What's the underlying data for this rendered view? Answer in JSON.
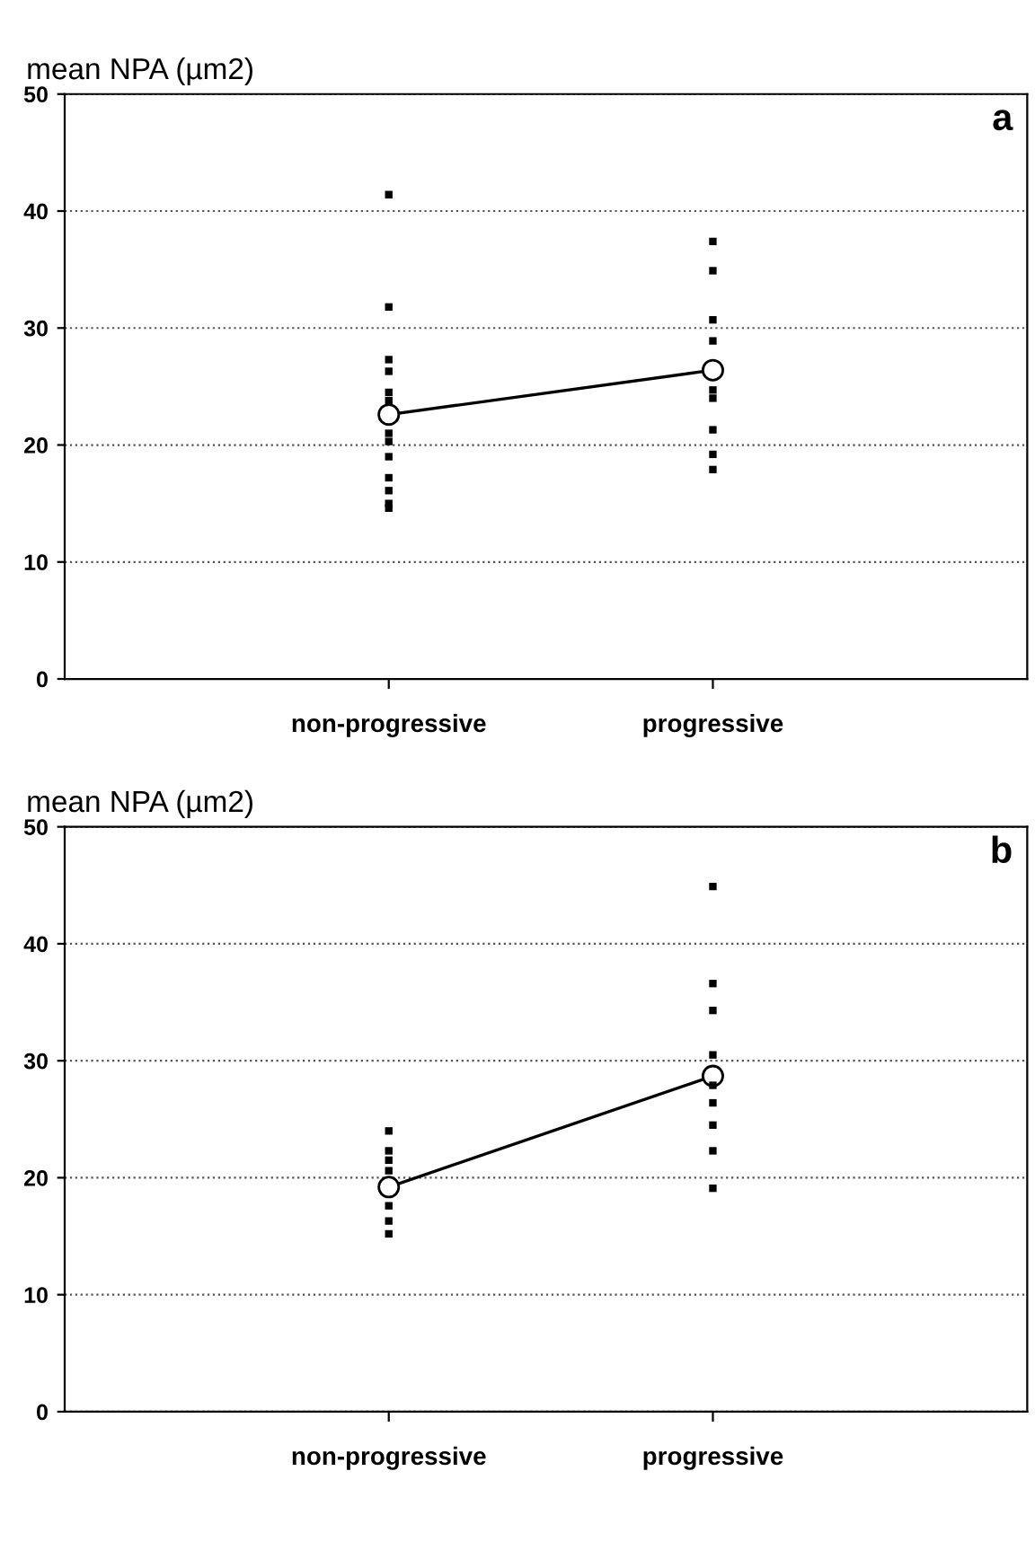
{
  "chart_data": [
    {
      "type": "scatter",
      "ylabel": "mean NPA (µm2)",
      "annotations": [
        "a"
      ],
      "categories": [
        "non-progressive",
        "progressive"
      ],
      "ylim": [
        0,
        50
      ],
      "yticks": [
        0,
        10,
        20,
        30,
        40,
        50
      ],
      "grid": "y",
      "series": [
        {
          "color": "#000000",
          "marker": "square",
          "x": [
            "non-progressive",
            "non-progressive",
            "non-progressive",
            "non-progressive",
            "non-progressive",
            "non-progressive",
            "non-progressive",
            "non-progressive",
            "non-progressive",
            "non-progressive",
            "non-progressive",
            "non-progressive",
            "non-progressive",
            "progressive",
            "progressive",
            "progressive",
            "progressive",
            "progressive",
            "progressive",
            "progressive",
            "progressive",
            "progressive"
          ],
          "values": [
            41.4,
            31.8,
            27.3,
            26.3,
            24.5,
            23.8,
            21,
            20.3,
            19,
            17.2,
            16.1,
            15,
            14.6,
            37.4,
            34.9,
            30.7,
            28.9,
            24.7,
            24,
            21.3,
            19.2,
            17.9
          ]
        },
        {
          "type": "line",
          "color": "#000000",
          "marker": "circle",
          "values": [
            22.6,
            26.4
          ]
        }
      ]
    },
    {
      "type": "scatter",
      "ylabel": "mean NPA (µm2)",
      "annotations": [
        "b"
      ],
      "categories": [
        "non-progressive",
        "progressive"
      ],
      "ylim": [
        0,
        50
      ],
      "yticks": [
        0,
        10,
        20,
        30,
        40,
        50
      ],
      "grid": "y",
      "series": [
        {
          "color": "#000000",
          "marker": "square",
          "x": [
            "non-progressive",
            "non-progressive",
            "non-progressive",
            "non-progressive",
            "non-progressive",
            "non-progressive",
            "non-progressive",
            "progressive",
            "progressive",
            "progressive",
            "progressive",
            "progressive",
            "progressive",
            "progressive",
            "progressive",
            "progressive"
          ],
          "values": [
            24,
            22.3,
            21.5,
            20.6,
            17.6,
            16.3,
            15.2,
            44.9,
            36.6,
            34.3,
            30.5,
            27.9,
            26.4,
            24.5,
            22.3,
            19.1
          ]
        },
        {
          "type": "line",
          "color": "#000000",
          "marker": "circle",
          "values": [
            19.2,
            28.7
          ]
        }
      ]
    }
  ]
}
